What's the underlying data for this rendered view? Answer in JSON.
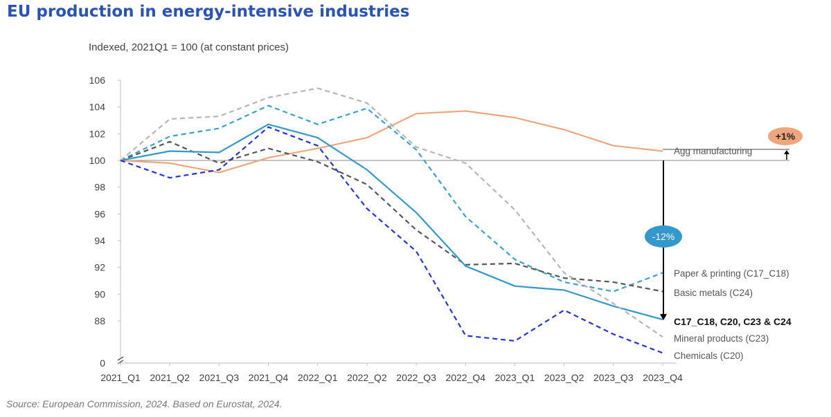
{
  "header": {
    "title": "EU production in energy-intensive industries",
    "subtitle": "Indexed, 2021Q1 = 100 (at constant prices)"
  },
  "footer": {
    "source": "Source: European Commission, 2024. Based on Eurostat, 2024."
  },
  "chart_data": {
    "type": "line",
    "title": "EU production in energy-intensive industries",
    "subtitle": "Indexed, 2021Q1 = 100 (at constant prices)",
    "xlabel": "",
    "ylabel": "",
    "ylim": [
      0,
      106
    ],
    "axis_break": "between 0 and 88",
    "yticks": [
      "106",
      "104",
      "102",
      "100",
      "98",
      "96",
      "94",
      "92",
      "90",
      "88",
      "0"
    ],
    "ytick_values": [
      106,
      104,
      102,
      100,
      98,
      96,
      94,
      92,
      90,
      88,
      0
    ],
    "categories": [
      "2021_Q1",
      "2021_Q2",
      "2021_Q3",
      "2021_Q4",
      "2022_Q1",
      "2022_Q2",
      "2022_Q3",
      "2022_Q4",
      "2023_Q1",
      "2023_Q2",
      "2023_Q3",
      "2023_Q4"
    ],
    "grid": false,
    "reference_line": 100,
    "series": [
      {
        "name": "Agg manufacturing",
        "color": "#f0a67c",
        "style": "solid",
        "values": [
          100,
          99.8,
          99.1,
          100.2,
          100.9,
          101.7,
          103.5,
          103.7,
          103.2,
          102.3,
          101.1,
          100.7
        ]
      },
      {
        "name": "Paper & printing (C17_C18)",
        "color": "#3aa0cf",
        "style": "dashed",
        "values": [
          100,
          101.8,
          102.4,
          104.1,
          102.7,
          103.9,
          100.8,
          95.8,
          92.6,
          90.9,
          90.2,
          91.6
        ]
      },
      {
        "name": "Basic metals (C24)",
        "color": "#555555",
        "style": "dashed",
        "values": [
          100,
          101.4,
          99.8,
          100.9,
          99.9,
          98.2,
          94.8,
          92.2,
          92.3,
          91.2,
          90.9,
          90.2
        ]
      },
      {
        "name": "C17_C18, C20, C23 & C24",
        "color": "#3399cc",
        "style": "solid",
        "values": [
          100,
          100.7,
          100.6,
          102.7,
          101.7,
          99.3,
          96.1,
          92.1,
          90.6,
          90.3,
          89.1,
          88.1
        ]
      },
      {
        "name": "Mineral products (C23)",
        "color": "#b5b5b5",
        "style": "dashed",
        "values": [
          100,
          103.1,
          103.3,
          104.7,
          105.4,
          104.3,
          101.0,
          99.8,
          96.3,
          91.6,
          89.3,
          86.8
        ]
      },
      {
        "name": "Chemicals (C20)",
        "color": "#2233dd",
        "style": "dashed",
        "values": [
          100,
          98.7,
          99.3,
          102.5,
          101.1,
          96.4,
          93.2,
          86.9,
          86.5,
          88.8,
          87.0,
          85.6
        ]
      }
    ],
    "annotations": [
      {
        "text": "+1%",
        "color": "#f0a67c",
        "shape": "ellipse"
      },
      {
        "text": "-12%",
        "color": "#3399cc",
        "shape": "ellipse"
      }
    ]
  }
}
